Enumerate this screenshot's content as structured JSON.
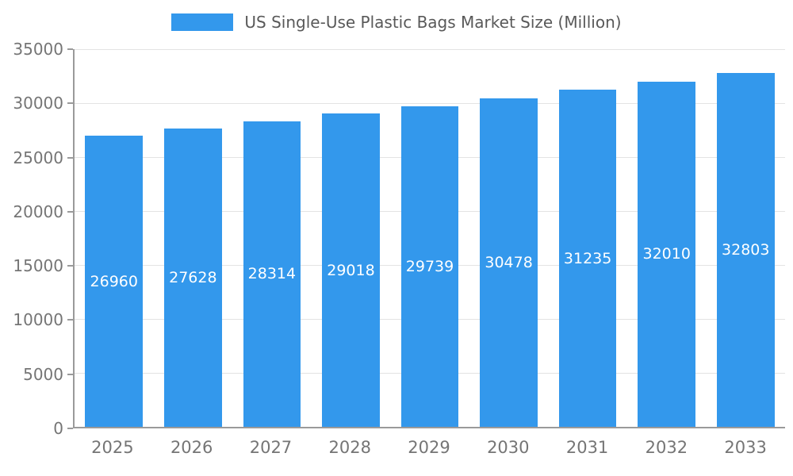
{
  "chart_data": {
    "type": "bar",
    "title": "US Single-Use Plastic Bags Market Size (Million)",
    "categories": [
      "2025",
      "2026",
      "2027",
      "2028",
      "2029",
      "2030",
      "2031",
      "2032",
      "2033"
    ],
    "values": [
      26960,
      27628,
      28314,
      29018,
      29739,
      30478,
      31235,
      32010,
      32803
    ],
    "xlabel": "",
    "ylabel": "",
    "ylim": [
      0,
      35000
    ],
    "ytick_step": 5000,
    "ytick_labels": [
      "0",
      "5000",
      "10000",
      "15000",
      "20000",
      "25000",
      "30000",
      "35000"
    ],
    "grid": true,
    "legend_position": "top",
    "value_labels": "inside-center",
    "colors": {
      "bar": "#3398EC",
      "value_label": "#FFFFFF",
      "axis": "#9A9A9A",
      "grid": "#E3E3E3",
      "tick_label": "#757575",
      "title": "#595959"
    }
  }
}
